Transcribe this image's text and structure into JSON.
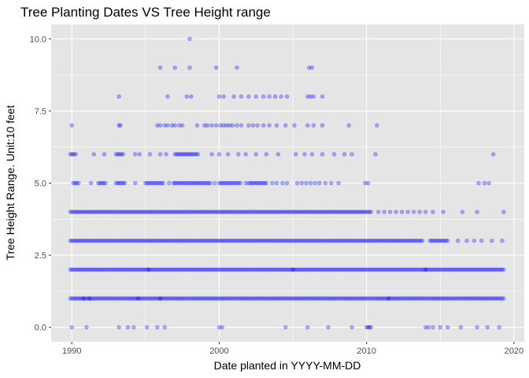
{
  "chart_data": {
    "type": "scatter",
    "title": "Tree Planting Dates VS Tree Height range",
    "xlabel": "Date planted in YYYY-MM-DD",
    "ylabel": "Tree Height Range. Unit:10 feet",
    "xlim": [
      1988.6,
      2020.7
    ],
    "ylim": [
      -0.5,
      10.5
    ],
    "x_ticks": [
      1990,
      2000,
      2010,
      2020
    ],
    "x_tick_labels": [
      "1990",
      "2000",
      "2010",
      "2020"
    ],
    "y_ticks": [
      0,
      2.5,
      5,
      7.5,
      10
    ],
    "y_tick_labels": [
      "0.0",
      "2.5",
      "5.0",
      "7.5",
      "10.0"
    ],
    "grid": true,
    "panel_background": "#e5e5e5",
    "grid_color": "#ffffff",
    "point_color": "#0000ff",
    "point_opacity": 0.3,
    "series": [
      {
        "y": 1,
        "segments": [
          [
            1989.9,
            2019.4
          ]
        ],
        "extra_x": [
          1990.8,
          1991.2,
          1994.5,
          1996.0,
          2011.5
        ]
      },
      {
        "y": 2,
        "segments": [
          [
            1989.9,
            2019.4
          ]
        ],
        "extra_x": [
          1995.2,
          2005.0,
          2014.0
        ]
      },
      {
        "y": 3,
        "segments": [
          [
            1989.9,
            2013.8
          ],
          [
            2014.3,
            2015.6
          ]
        ],
        "extra_x": [
          2016.2,
          2016.8,
          2017.3,
          2017.8,
          2018.5,
          2019.2
        ]
      },
      {
        "y": 4,
        "segments": [
          [
            1989.9,
            2010.3
          ]
        ],
        "extra_x": [
          2010.8,
          2011.2,
          2011.6,
          2012.0,
          2012.4,
          2012.8,
          2013.2,
          2013.6,
          2014.0,
          2014.5,
          2015.2,
          2016.5,
          2017.5,
          2019.3
        ]
      },
      {
        "y": 5,
        "segments": [
          [
            1990.1,
            1990.5
          ],
          [
            1991.8,
            1992.3
          ],
          [
            1993.0,
            1993.7
          ],
          [
            1995.0,
            1996.3
          ],
          [
            1997.0,
            1999.5
          ],
          [
            2000.0,
            2001.5
          ],
          [
            2002.0,
            2003.3
          ]
        ],
        "extra_x": [
          1991.3,
          1994.3,
          1996.6,
          1996.9,
          1999.7,
          2001.8,
          2003.6,
          2003.9,
          2004.3,
          2004.6,
          2005.3,
          2005.6,
          2005.9,
          2006.2,
          2006.5,
          2006.8,
          2007.2,
          2007.6,
          2008.1,
          2009.9,
          2010.1,
          2017.6,
          2018.0,
          2018.3
        ]
      },
      {
        "y": 6,
        "segments": [
          [
            1989.9,
            1990.3
          ],
          [
            1993.0,
            1993.5
          ],
          [
            1997.0,
            1998.6
          ]
        ],
        "extra_x": [
          1991.5,
          1992.2,
          1994.3,
          1994.6,
          1995.3,
          1996.0,
          1996.4,
          1999.5,
          2000.0,
          2000.6,
          2001.3,
          2001.8,
          2002.5,
          2003.2,
          2004.0,
          2005.2,
          2005.8,
          2006.3,
          2007.0,
          2007.8,
          2008.5,
          2009.0,
          2010.6,
          2018.6
        ]
      },
      {
        "y": 7,
        "x": [
          1990.0,
          1993.2,
          1993.3,
          1995.8,
          1996.0,
          1996.3,
          1996.5,
          1996.8,
          1997.0,
          1997.3,
          1997.5,
          1998.5,
          1999.0,
          1999.2,
          1999.5,
          1999.8,
          2000.1,
          2000.3,
          2000.5,
          2000.7,
          2000.9,
          2001.2,
          2001.5,
          2002.0,
          2002.3,
          2002.6,
          2003.0,
          2003.4,
          2003.9,
          2004.5,
          2005.1,
          2006.0,
          2006.4,
          2007.0,
          2008.8,
          2010.7
        ]
      },
      {
        "y": 8,
        "x": [
          1993.2,
          1996.5,
          1997.8,
          1998.1,
          2000.0,
          2000.3,
          2001.0,
          2001.5,
          2002.0,
          2002.5,
          2003.0,
          2003.4,
          2003.8,
          2004.2,
          2004.6,
          2006.0,
          2006.2,
          2006.4,
          2007.0
        ]
      },
      {
        "y": 9,
        "x": [
          1996.0,
          1997.0,
          1998.0,
          1999.8,
          2001.2,
          2006.1,
          2006.3
        ]
      },
      {
        "y": 10,
        "x": [
          1998.0
        ]
      },
      {
        "y": 0,
        "x": [
          1990.0,
          1991.0,
          1993.2,
          1993.8,
          1994.2,
          1995.1,
          1995.8,
          1996.3,
          2000.0,
          2000.2,
          2004.5,
          2006.0,
          2007.4,
          2009.0,
          2010.0,
          2010.1,
          2010.2,
          2010.3,
          2014.0,
          2014.2,
          2014.5,
          2015.0,
          2015.5,
          2016.4,
          2017.5,
          2018.2,
          2019.0
        ]
      }
    ]
  }
}
